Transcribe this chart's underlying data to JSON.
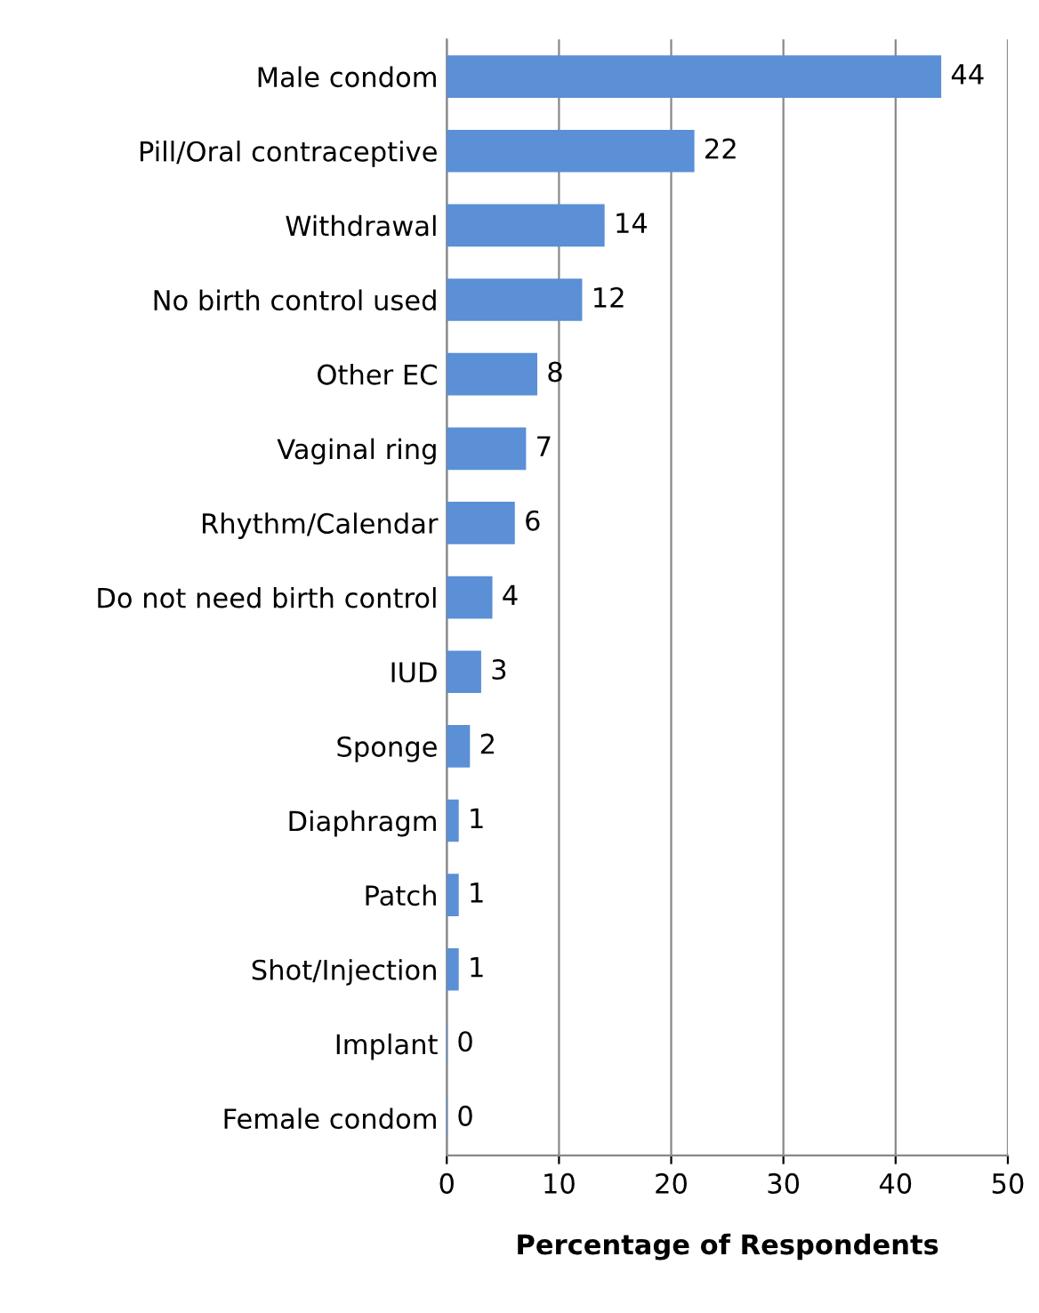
{
  "chart_data": {
    "type": "bar",
    "orientation": "horizontal",
    "xlabel": "Percentage of Respondents",
    "categories": [
      "Male condom",
      "Pill/Oral contraceptive",
      "Withdrawal",
      "No birth control used",
      "Other EC",
      "Vaginal ring",
      "Rhythm/Calendar",
      "Do not need birth control",
      "IUD",
      "Sponge",
      "Diaphragm",
      "Patch",
      "Shot/Injection",
      "Implant",
      "Female condom"
    ],
    "values": [
      44,
      22,
      14,
      12,
      8,
      7,
      6,
      4,
      3,
      2,
      1,
      1,
      1,
      0,
      0
    ],
    "color": "#5b8fd6",
    "xlim": [
      0,
      50
    ],
    "xticks": [
      0,
      10,
      20,
      30,
      40,
      50
    ],
    "grid": "x",
    "data_labels": true
  }
}
